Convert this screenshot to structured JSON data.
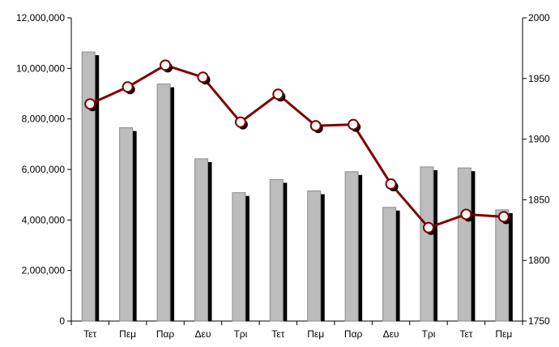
{
  "chart_data": {
    "type": "bar+line",
    "categories": [
      "Τετ",
      "Πεμ",
      "Παρ",
      "Δευ",
      "Τρι",
      "Τετ",
      "Πεμ",
      "Παρ",
      "Δευ",
      "Τρι",
      "Τετ",
      "Πεμ"
    ],
    "series": [
      {
        "type": "bar",
        "axis": "left",
        "color": "#bdbdbd",
        "values": [
          10650000,
          7650000,
          9380000,
          6420000,
          5080000,
          5600000,
          5150000,
          5910000,
          4500000,
          6100000,
          6060000,
          4400000
        ]
      },
      {
        "type": "line",
        "axis": "right",
        "color": "#7f0000",
        "values": [
          1929,
          1943,
          1961,
          1951,
          1914,
          1937,
          1911,
          1912,
          1863,
          1827,
          1838,
          1836
        ]
      }
    ],
    "y_left": {
      "min": 0,
      "max": 12000000,
      "ticks": [
        "0",
        "2,000,000",
        "4,000,000",
        "6,000,000",
        "8,000,000",
        "10,000,000",
        "12,000,000"
      ]
    },
    "y_right": {
      "min": 1750,
      "max": 2000,
      "ticks": [
        "1750",
        "1800",
        "1850",
        "1900",
        "1950",
        "2000"
      ]
    },
    "xlabel": "",
    "ylabel": "",
    "title": "",
    "grid": false,
    "legend": "none"
  }
}
